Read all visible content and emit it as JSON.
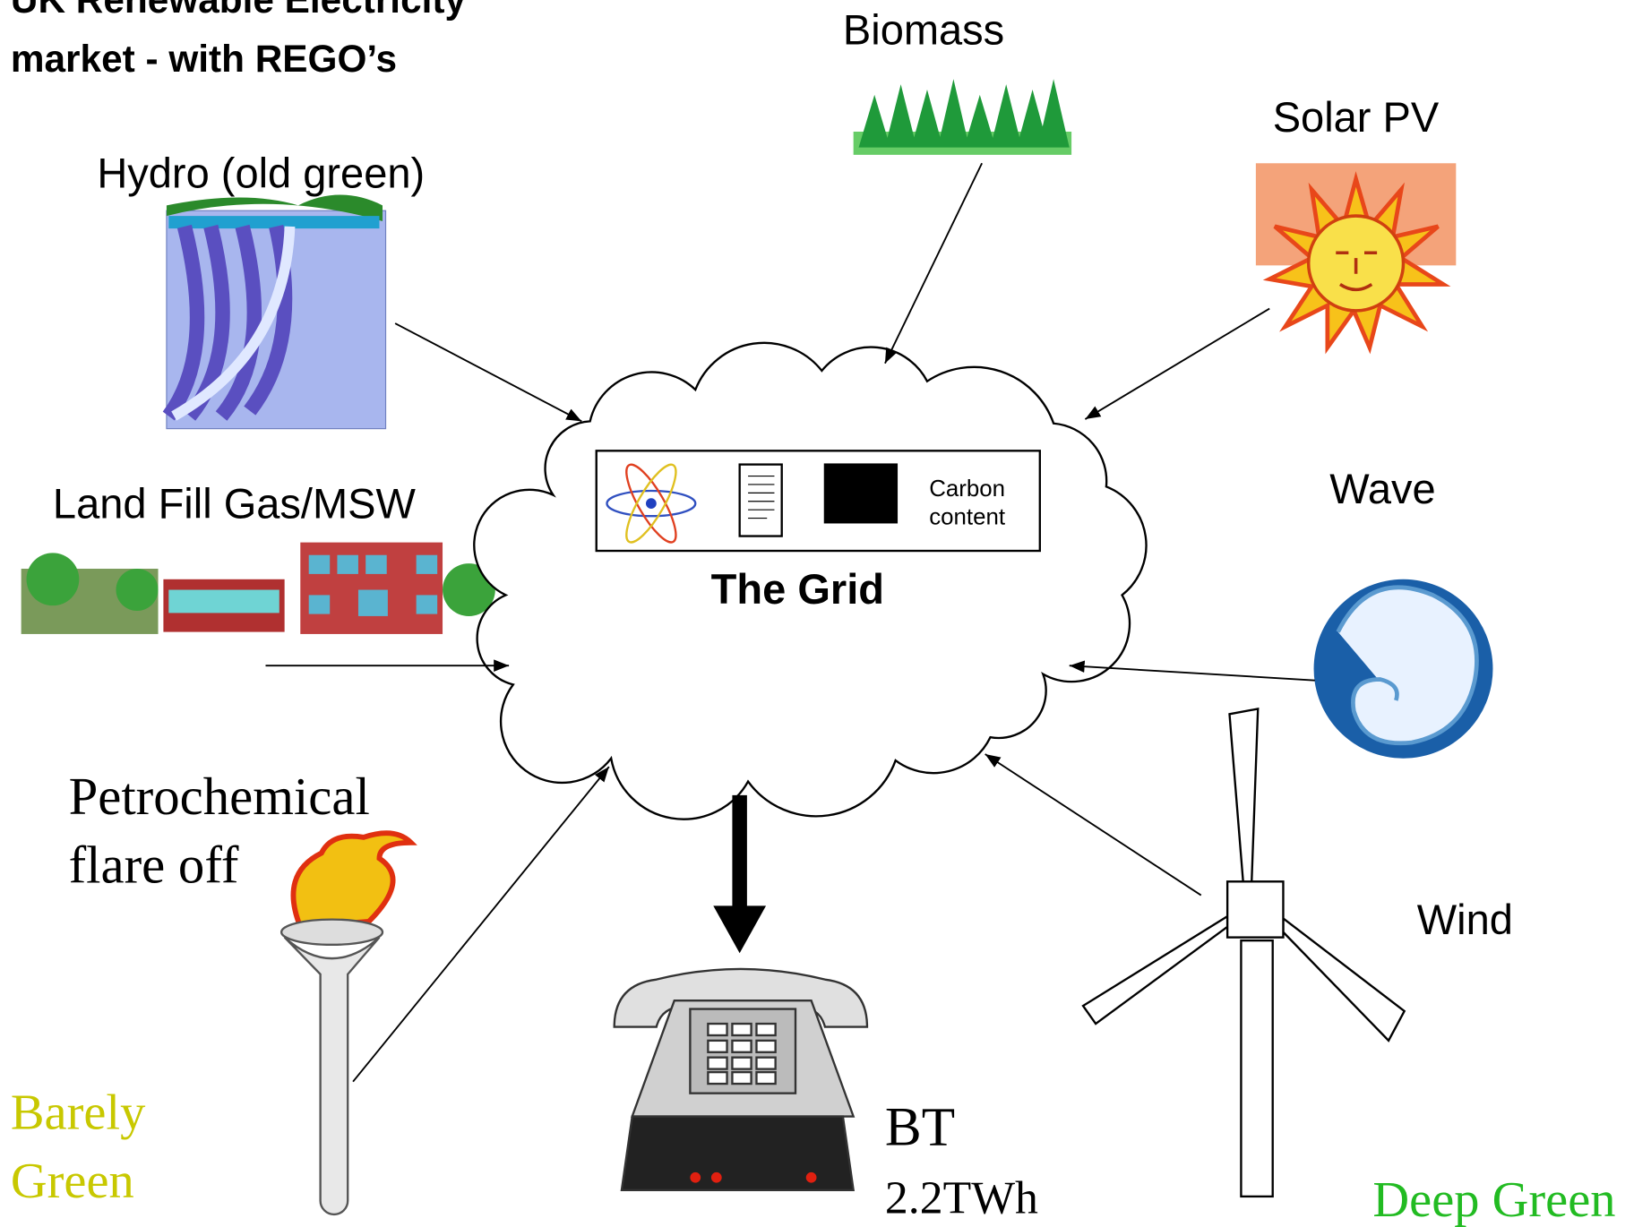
{
  "title": [
    "UK Renewable Electricity",
    "market - with REGO’s"
  ],
  "sources": {
    "biomass": "Biomass",
    "solar": "Solar PV",
    "hydro": "Hydro (old green)",
    "landfill": "Land Fill Gas/MSW",
    "wave": "Wave",
    "petrochemical": [
      "Petrochemical",
      "flare off"
    ],
    "wind": "Wind"
  },
  "grid": {
    "label": "The Grid",
    "carbon": [
      "Carbon",
      "content"
    ]
  },
  "consumer": {
    "name": "BT",
    "amount": "2.2TWh"
  },
  "scale": {
    "low": [
      "Barely",
      "Green"
    ],
    "high": "Deep Green"
  }
}
